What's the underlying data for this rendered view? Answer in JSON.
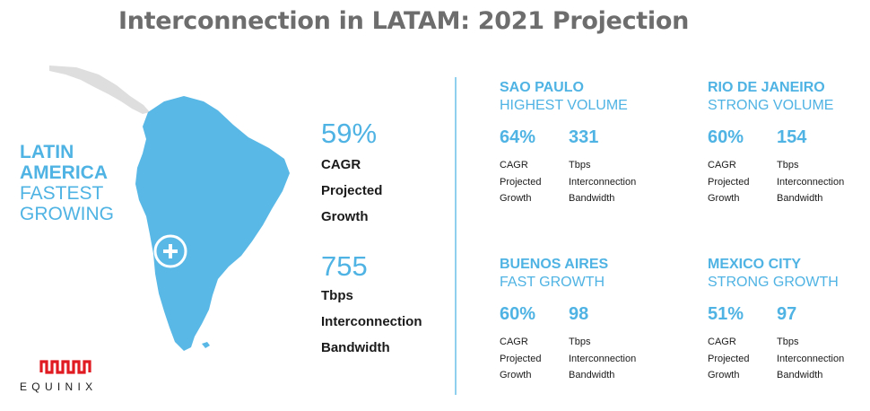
{
  "title": "Interconnection in LATAM: 2021 Projection",
  "region": {
    "line1": "LATIN",
    "line2": "AMERICA",
    "line3": "FASTEST",
    "line4": "GROWING"
  },
  "overall": {
    "cagr_value": "59%",
    "cagr_label": [
      "CAGR",
      "Projected",
      "Growth"
    ],
    "bandwidth_value": "755",
    "bandwidth_label": [
      "Tbps",
      "Interconnection",
      "Bandwidth"
    ]
  },
  "cities": [
    {
      "name": "SAO PAULO",
      "subtitle": "HIGHEST VOLUME",
      "cagr": "64%",
      "tbps": "331"
    },
    {
      "name": "RIO DE JANEIRO",
      "subtitle": "STRONG VOLUME",
      "cagr": "60%",
      "tbps": "154"
    },
    {
      "name": "BUENOS AIRES",
      "subtitle": "FAST GROWTH",
      "cagr": "60%",
      "tbps": "98"
    },
    {
      "name": "MEXICO CITY",
      "subtitle": "STRONG GROWTH",
      "cagr": "51%",
      "tbps": "97"
    }
  ],
  "metric_labels": {
    "cagr": [
      "CAGR",
      "Projected",
      "Growth"
    ],
    "tbps": [
      "Tbps",
      "Interconnection",
      "Bandwidth"
    ]
  },
  "map_marker_icon": "plus-circle-icon",
  "logo": {
    "text": "EQUINIX",
    "color": "#e01b22"
  },
  "colors": {
    "accent": "#4fb3e3",
    "title": "#6d6d6d",
    "map_land": "#59b8e6",
    "map_other": "#dedede"
  }
}
